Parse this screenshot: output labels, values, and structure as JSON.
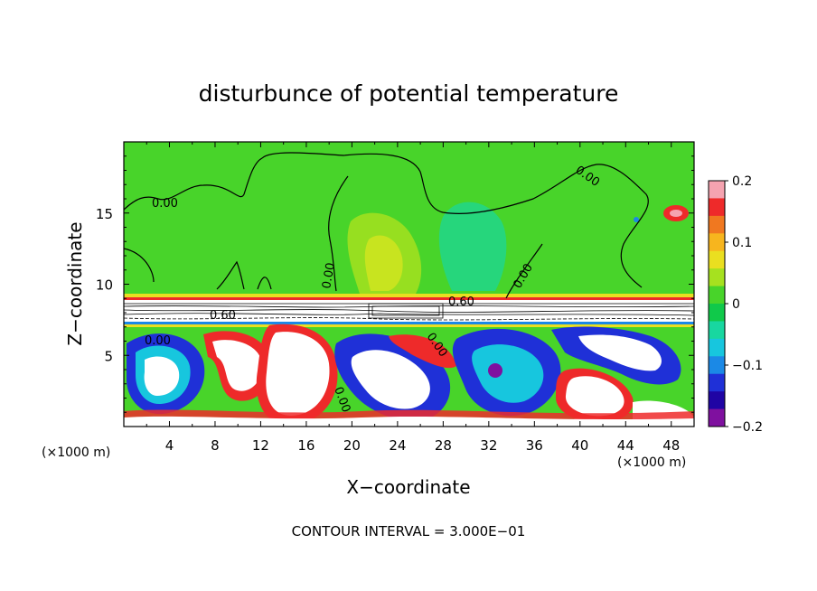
{
  "chart_data": {
    "type": "heatmap",
    "title": "disturbunce of potential temperature",
    "xlabel": "X−coordinate",
    "ylabel": "Z−coordinate",
    "x_unit_left": "(×1000 m)",
    "x_unit_right": "(×1000 m)",
    "footer": "CONTOUR INTERVAL = 3.000E−01",
    "xlim": [
      0,
      50
    ],
    "ylim": [
      0,
      20
    ],
    "x_ticks": [
      4,
      8,
      12,
      16,
      20,
      24,
      28,
      32,
      36,
      40,
      44,
      48
    ],
    "x_tick_labels": [
      "4",
      "8",
      "12",
      "16",
      "20",
      "24",
      "28",
      "32",
      "36",
      "40",
      "44",
      "48"
    ],
    "y_ticks": [
      5,
      10,
      15
    ],
    "y_tick_labels": [
      "5",
      "10",
      "15"
    ],
    "colorbar": {
      "range": [
        -0.2,
        0.2
      ],
      "tick_values": [
        0.2,
        0.1,
        0,
        -0.1,
        -0.2
      ],
      "tick_labels": [
        "0.2",
        "0.1",
        "0",
        "−0.1",
        "−0.2"
      ],
      "colors": [
        "#f5a3b0",
        "#ee2a2a",
        "#f07820",
        "#f7b51e",
        "#eadf20",
        "#a6e11f",
        "#48d42a",
        "#10c94a",
        "#18d7a0",
        "#17c6de",
        "#1b89e6",
        "#1f30d7",
        "#1f04a4",
        "#7f109f"
      ]
    },
    "contour_labels": [
      "0.00",
      "0.00",
      "0.00",
      "0.00",
      "0.00",
      "0.60",
      "0.60",
      "0.00",
      "0.00"
    ]
  }
}
